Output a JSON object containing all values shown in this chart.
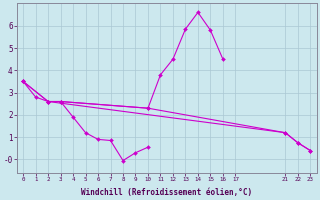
{
  "xlabel": "Windchill (Refroidissement éolien,°C)",
  "background_color": "#cce8ee",
  "grid_color": "#aac8d4",
  "line_color": "#cc00cc",
  "xlim": [
    -0.5,
    23.5
  ],
  "ylim": [
    -0.6,
    7.0
  ],
  "xticks": [
    0,
    1,
    2,
    3,
    4,
    5,
    6,
    7,
    8,
    9,
    10,
    11,
    12,
    13,
    14,
    15,
    16,
    17,
    21,
    22,
    23
  ],
  "yticks": [
    0,
    1,
    2,
    3,
    4,
    5,
    6
  ],
  "ytick_labels": [
    "-0",
    "1",
    "2",
    "3",
    "4",
    "5",
    "6"
  ],
  "segments": [
    {
      "x": [
        0,
        2,
        3,
        10,
        11,
        12,
        13,
        14,
        15,
        16
      ],
      "y": [
        3.5,
        2.6,
        2.6,
        2.3,
        3.8,
        4.5,
        5.85,
        6.6,
        5.8,
        4.5
      ]
    },
    {
      "x": [
        0,
        1,
        2,
        3,
        4,
        5,
        6,
        7,
        8,
        9,
        10
      ],
      "y": [
        3.5,
        2.8,
        2.6,
        2.6,
        1.9,
        1.2,
        0.9,
        0.85,
        -0.05,
        0.3,
        0.55
      ]
    },
    {
      "x": [
        0,
        2,
        21,
        22,
        23
      ],
      "y": [
        3.5,
        2.6,
        1.2,
        0.75,
        0.4
      ]
    },
    {
      "x": [
        3,
        10,
        21,
        22,
        23
      ],
      "y": [
        2.6,
        2.3,
        1.2,
        0.75,
        0.4
      ]
    }
  ]
}
